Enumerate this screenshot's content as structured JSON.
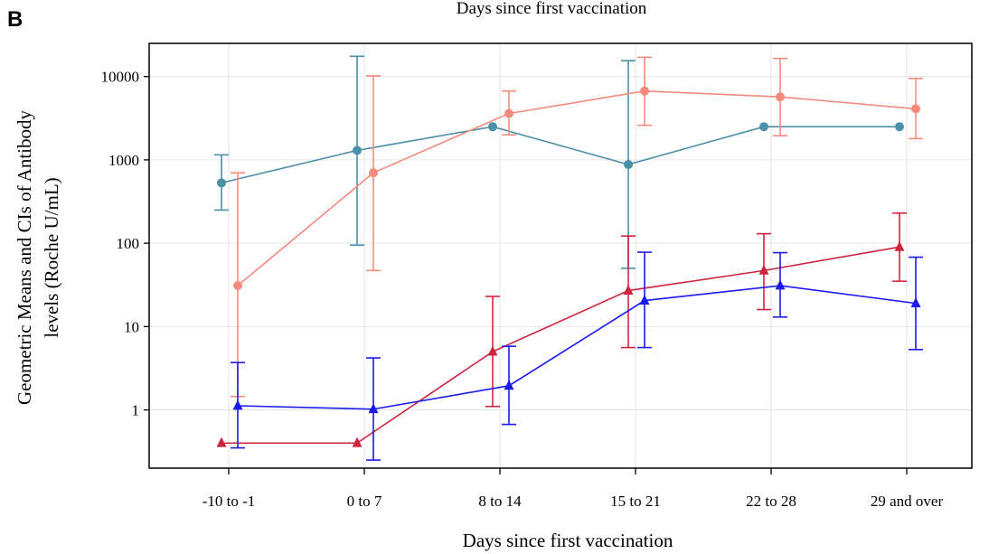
{
  "panel_label": "B",
  "chart_data": {
    "type": "line",
    "title": "Days since first vaccination",
    "xlabel": "Days since first vaccination",
    "ylabel_lines": [
      "Geometric Means and CIs of Antibody",
      "levels (Roche U/mL)"
    ],
    "y_scale": "log",
    "ylim": [
      0.2,
      25000
    ],
    "y_ticks": [
      1,
      10,
      100,
      1000,
      10000
    ],
    "y_tick_labels": [
      "1",
      "10",
      "100",
      "1000",
      "10000"
    ],
    "grid": true,
    "legend": "none",
    "categories": [
      "-10 to -1",
      "0 to 7",
      "8 to 14",
      "15 to 21",
      "22 to 28",
      "29 and over"
    ],
    "series": [
      {
        "color": "#4a90a8",
        "marker": "circle",
        "values": [
          530,
          1300,
          2500,
          880,
          2500,
          2500
        ],
        "lower": [
          250,
          95,
          null,
          50,
          null,
          null
        ],
        "upper": [
          1150,
          17500,
          null,
          15500,
          null,
          null
        ]
      },
      {
        "color": "#f58a7c",
        "marker": "circle",
        "values": [
          31,
          700,
          3600,
          6700,
          5700,
          4100
        ],
        "lower": [
          1.45,
          47,
          2000,
          2600,
          1950,
          1800
        ],
        "upper": [
          700,
          10200,
          6700,
          17000,
          16500,
          9500
        ]
      },
      {
        "color": "#d0243e",
        "marker": "triangle",
        "values": [
          0.4,
          0.4,
          5,
          27,
          47,
          90
        ],
        "lower": [
          null,
          null,
          1.1,
          5.6,
          16,
          35
        ],
        "upper": [
          null,
          null,
          23,
          122,
          130,
          230
        ]
      },
      {
        "color": "#1a1aee",
        "marker": "triangle",
        "values": [
          1.12,
          1.02,
          1.95,
          20.5,
          31,
          19
        ],
        "lower": [
          0.35,
          0.25,
          0.67,
          5.6,
          13,
          5.3
        ],
        "upper": [
          3.7,
          4.2,
          5.8,
          78,
          77,
          68
        ]
      }
    ]
  }
}
